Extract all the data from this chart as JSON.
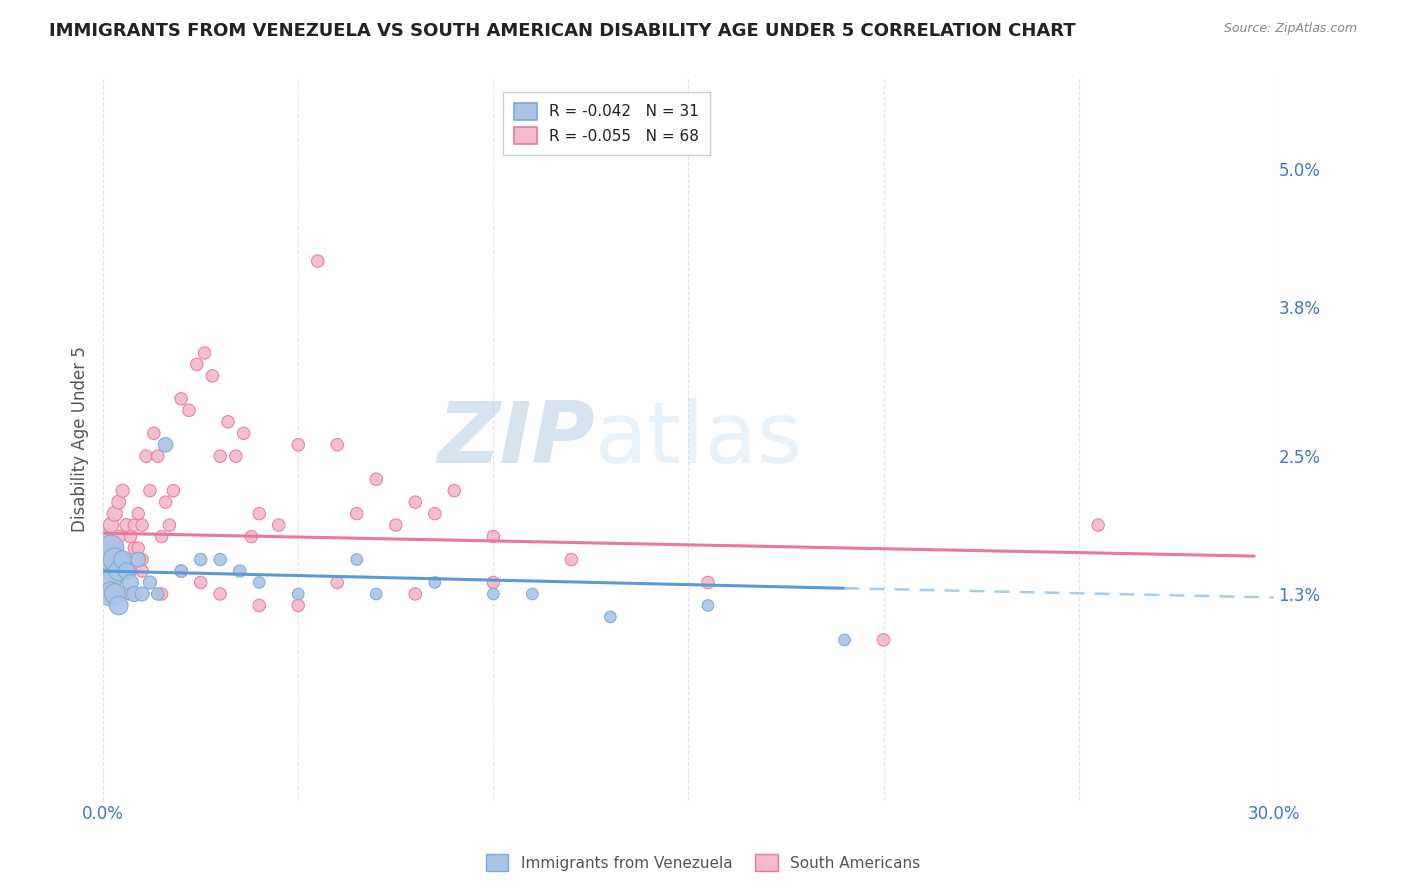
{
  "title": "IMMIGRANTS FROM VENEZUELA VS SOUTH AMERICAN DISABILITY AGE UNDER 5 CORRELATION CHART",
  "source": "Source: ZipAtlas.com",
  "ylabel": "Disability Age Under 5",
  "watermark_zip": "ZIP",
  "watermark_atlas": "atlas",
  "xlim": [
    0.0,
    0.3
  ],
  "ylim": [
    -0.005,
    0.058
  ],
  "yticks": [
    0.013,
    0.025,
    0.038,
    0.05
  ],
  "ytick_labels": [
    "1.3%",
    "2.5%",
    "3.8%",
    "5.0%"
  ],
  "xticks": [
    0.0,
    0.05,
    0.1,
    0.15,
    0.2,
    0.25,
    0.3
  ],
  "xtick_labels_first": "0.0%",
  "xtick_labels_last": "30.0%",
  "tick_color": "#4472c4",
  "background_color": "#ffffff",
  "grid_color": "#bbbbbb",
  "axis_label_color": "#555555",
  "title_color": "#222222",
  "title_fontsize": 13,
  "legend_fontsize": 11,
  "series": [
    {
      "name": "Immigrants from Venezuela",
      "face_color": "#aac4e8",
      "edge_color": "#7aaad0",
      "R": -0.042,
      "N": 31,
      "x": [
        0.001,
        0.001,
        0.002,
        0.002,
        0.003,
        0.003,
        0.004,
        0.004,
        0.005,
        0.006,
        0.007,
        0.008,
        0.009,
        0.01,
        0.012,
        0.014,
        0.016,
        0.02,
        0.025,
        0.03,
        0.035,
        0.04,
        0.05,
        0.065,
        0.07,
        0.085,
        0.1,
        0.11,
        0.13,
        0.155,
        0.19
      ],
      "y": [
        0.016,
        0.014,
        0.017,
        0.013,
        0.016,
        0.013,
        0.015,
        0.012,
        0.016,
        0.015,
        0.014,
        0.013,
        0.016,
        0.013,
        0.014,
        0.013,
        0.026,
        0.015,
        0.016,
        0.016,
        0.015,
        0.014,
        0.013,
        0.016,
        0.013,
        0.014,
        0.013,
        0.013,
        0.011,
        0.012,
        0.009
      ],
      "sizes": [
        500,
        400,
        350,
        300,
        280,
        220,
        200,
        180,
        160,
        140,
        130,
        120,
        110,
        100,
        90,
        80,
        110,
        80,
        80,
        80,
        80,
        70,
        70,
        70,
        70,
        70,
        70,
        70,
        70,
        70,
        70
      ]
    },
    {
      "name": "South Americans",
      "face_color": "#f5b8cc",
      "edge_color": "#e8799a",
      "R": -0.055,
      "N": 68,
      "x": [
        0.001,
        0.001,
        0.002,
        0.002,
        0.003,
        0.003,
        0.004,
        0.004,
        0.005,
        0.005,
        0.006,
        0.006,
        0.007,
        0.007,
        0.008,
        0.008,
        0.009,
        0.009,
        0.01,
        0.01,
        0.011,
        0.012,
        0.013,
        0.014,
        0.015,
        0.016,
        0.017,
        0.018,
        0.02,
        0.022,
        0.024,
        0.026,
        0.028,
        0.03,
        0.032,
        0.034,
        0.036,
        0.038,
        0.04,
        0.045,
        0.05,
        0.055,
        0.06,
        0.065,
        0.07,
        0.075,
        0.08,
        0.085,
        0.09,
        0.1,
        0.002,
        0.003,
        0.005,
        0.007,
        0.01,
        0.015,
        0.02,
        0.025,
        0.03,
        0.04,
        0.05,
        0.06,
        0.08,
        0.1,
        0.12,
        0.155,
        0.2,
        0.255
      ],
      "y": [
        0.018,
        0.015,
        0.019,
        0.016,
        0.02,
        0.017,
        0.021,
        0.018,
        0.022,
        0.015,
        0.019,
        0.016,
        0.018,
        0.015,
        0.019,
        0.017,
        0.02,
        0.017,
        0.019,
        0.016,
        0.025,
        0.022,
        0.027,
        0.025,
        0.018,
        0.021,
        0.019,
        0.022,
        0.03,
        0.029,
        0.033,
        0.034,
        0.032,
        0.025,
        0.028,
        0.025,
        0.027,
        0.018,
        0.02,
        0.019,
        0.026,
        0.042,
        0.026,
        0.02,
        0.023,
        0.019,
        0.021,
        0.02,
        0.022,
        0.018,
        0.013,
        0.014,
        0.016,
        0.013,
        0.015,
        0.013,
        0.015,
        0.014,
        0.013,
        0.012,
        0.012,
        0.014,
        0.013,
        0.014,
        0.016,
        0.014,
        0.009,
        0.019
      ],
      "sizes": [
        120,
        120,
        120,
        100,
        120,
        100,
        100,
        90,
        90,
        90,
        90,
        80,
        80,
        80,
        80,
        80,
        80,
        80,
        80,
        80,
        80,
        80,
        80,
        80,
        80,
        80,
        80,
        80,
        80,
        80,
        80,
        80,
        80,
        80,
        80,
        80,
        80,
        80,
        80,
        80,
        80,
        80,
        80,
        80,
        80,
        80,
        80,
        80,
        80,
        80,
        80,
        80,
        80,
        80,
        80,
        80,
        80,
        80,
        80,
        80,
        80,
        80,
        80,
        80,
        80,
        80,
        80,
        80
      ]
    }
  ],
  "trendline_pink": {
    "color": "#e8799a",
    "x_start": 0.0,
    "x_end": 0.295,
    "y_start": 0.0183,
    "y_end": 0.0163
  },
  "trendline_blue_solid": {
    "color": "#5b9bd5",
    "x_start": 0.0,
    "x_end": 0.19,
    "y_start": 0.015,
    "y_end": 0.0135
  },
  "trendline_blue_dashed": {
    "color": "#aacce8",
    "x_start": 0.19,
    "x_end": 0.3,
    "y_start": 0.0135,
    "y_end": 0.0127
  }
}
